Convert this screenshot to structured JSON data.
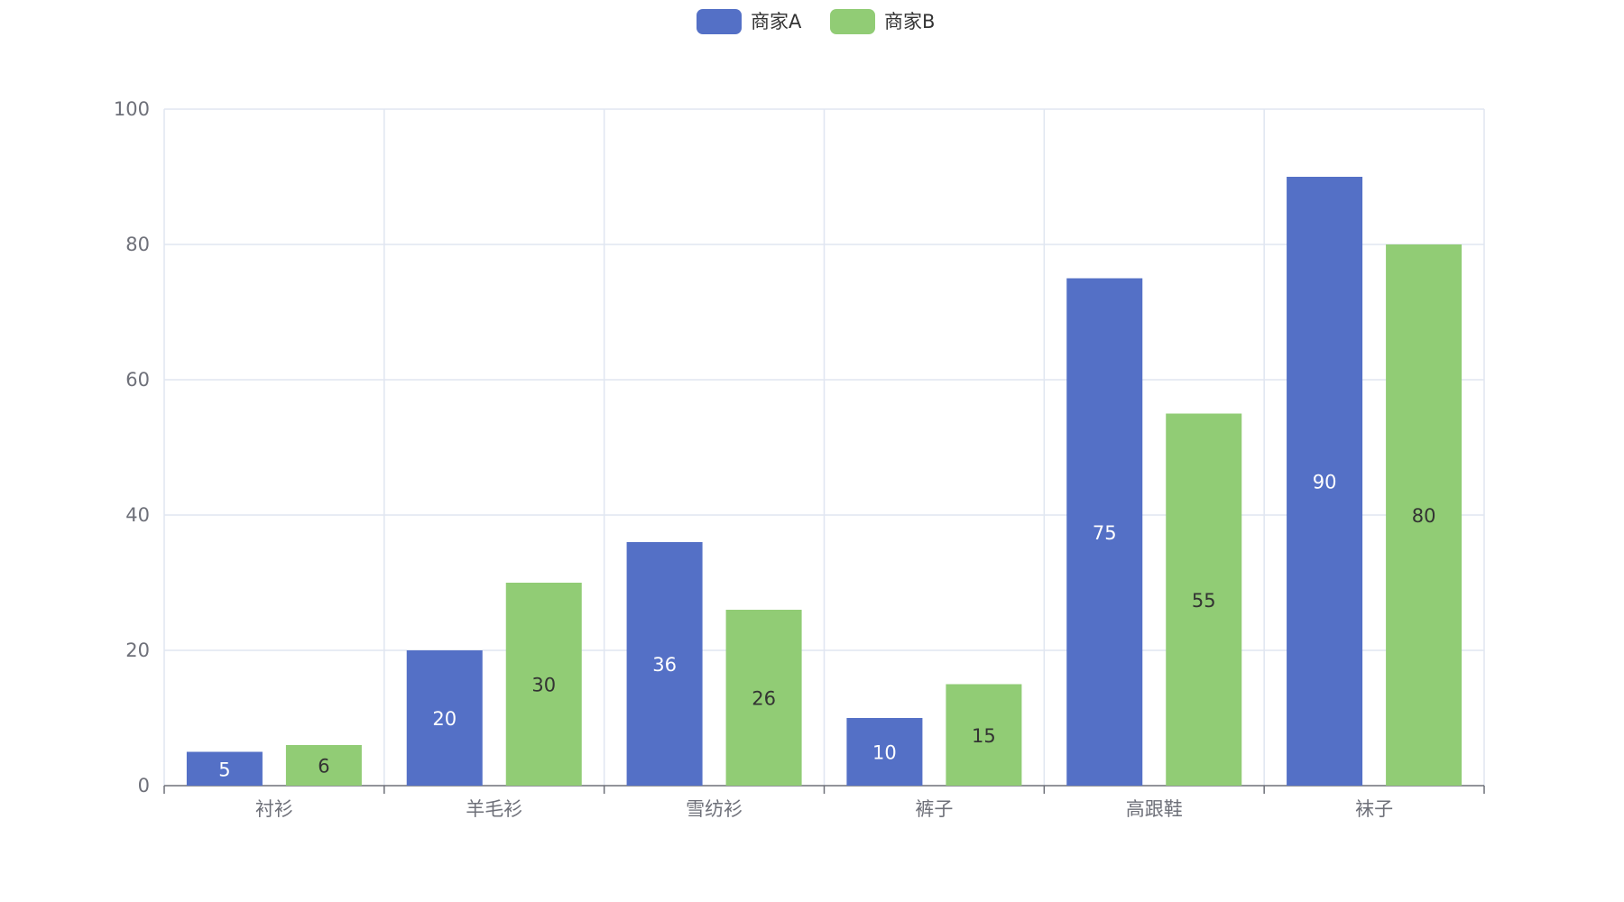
{
  "chart_data": {
    "type": "bar",
    "categories": [
      "衬衫",
      "羊毛衫",
      "雪纺衫",
      "裤子",
      "高跟鞋",
      "袜子"
    ],
    "series": [
      {
        "name": "商家A",
        "values": [
          5,
          20,
          36,
          10,
          75,
          90
        ],
        "color": "#5470c6",
        "label_color": "#ffffff"
      },
      {
        "name": "商家B",
        "values": [
          6,
          30,
          26,
          15,
          55,
          80
        ],
        "color": "#91cc75",
        "label_color": "#333333"
      }
    ],
    "y_ticks": [
      "0",
      "20",
      "40",
      "60",
      "80",
      "100"
    ],
    "ylim": [
      0,
      100
    ],
    "grid": true,
    "legend_position": "top-center",
    "data_labels": "inside-center"
  }
}
